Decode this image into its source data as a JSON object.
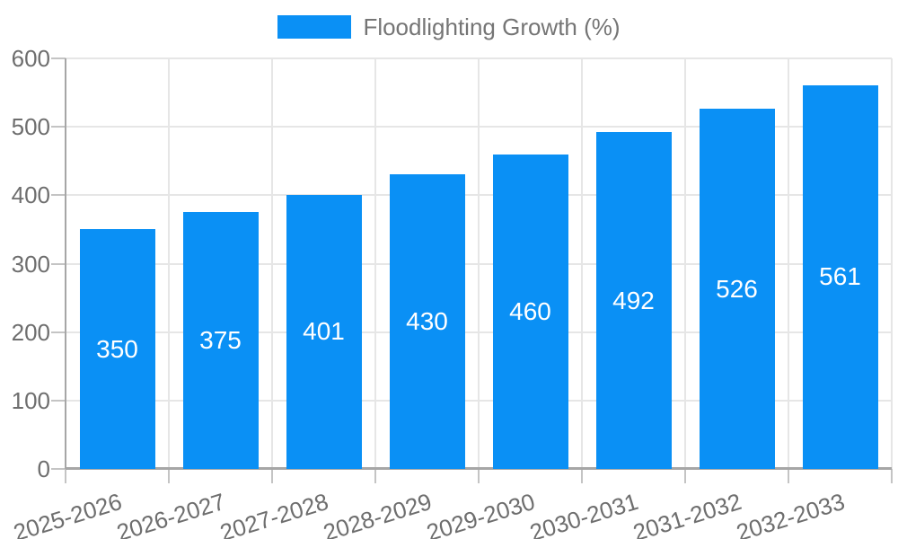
{
  "legend": {
    "label": "Floodlighting Growth (%)"
  },
  "chart_data": {
    "type": "bar",
    "title": "",
    "categories": [
      "2025-2026",
      "2026-2027",
      "2027-2028",
      "2028-2029",
      "2029-2030",
      "2030-2031",
      "2031-2032",
      "2032-2033"
    ],
    "series": [
      {
        "name": "Floodlighting Growth (%)",
        "values": [
          350,
          375,
          401,
          430,
          460,
          492,
          526,
          561
        ],
        "color": "#0A90F5"
      }
    ],
    "xlabel": "",
    "ylabel": "",
    "ylim": [
      0,
      600
    ],
    "yticks": [
      0,
      100,
      200,
      300,
      400,
      500,
      600
    ],
    "grid": true,
    "legend_position": "top",
    "value_labels_position": "inside-center",
    "value_label_color": "#FFFFFF",
    "gridline_color": "#E6E6E6",
    "axis_color": "#A6A6A6",
    "tick_mark_color": "#C4C4C4",
    "axis_label_color": "#6E6E6E",
    "legend_text_color": "#757575"
  }
}
